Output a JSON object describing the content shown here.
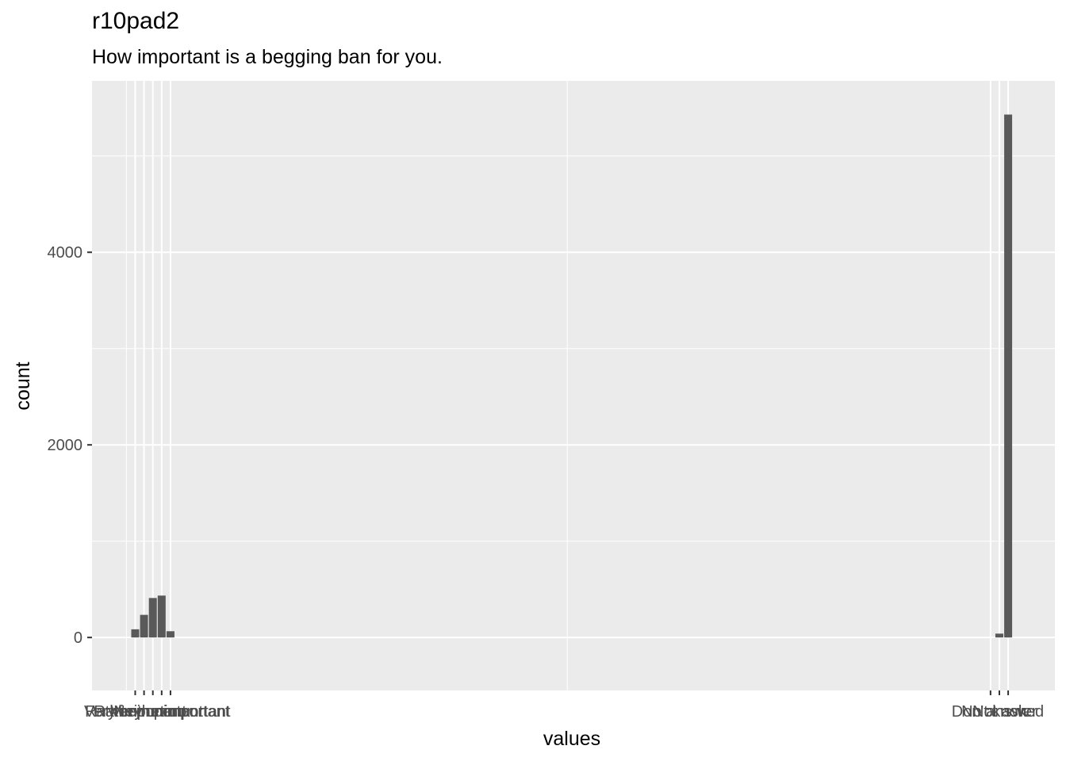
{
  "chart_data": {
    "type": "bar",
    "title": "r10pad2",
    "subtitle": "How important is a begging ban for you.",
    "xlabel": "values",
    "ylabel": "count",
    "x_tick_labels": [
      "Very important",
      "Rather important",
      "Neither nor",
      "Rather unimportant",
      "Very unimportant",
      "Don't know",
      "No answer",
      "Not asked"
    ],
    "categories": [
      "Very important",
      "Rather important",
      "Neither nor",
      "Rather unimportant",
      "Very unimportant",
      "No answer",
      "Not asked"
    ],
    "x": [
      1,
      2,
      3,
      4,
      5,
      99,
      100
    ],
    "values": [
      85,
      235,
      410,
      435,
      65,
      40,
      5430
    ],
    "ylim": [
      -550,
      5780
    ],
    "xlim": [
      -3.9,
      105.3
    ],
    "y_ticks": [
      0,
      2000,
      4000
    ],
    "y_minor_ticks": [
      1000,
      3000,
      5000
    ],
    "x_grid": [
      0,
      50,
      100
    ],
    "bar_color": "#595959",
    "panel_color": "#ebebeb",
    "grid": true,
    "legend": "none"
  }
}
